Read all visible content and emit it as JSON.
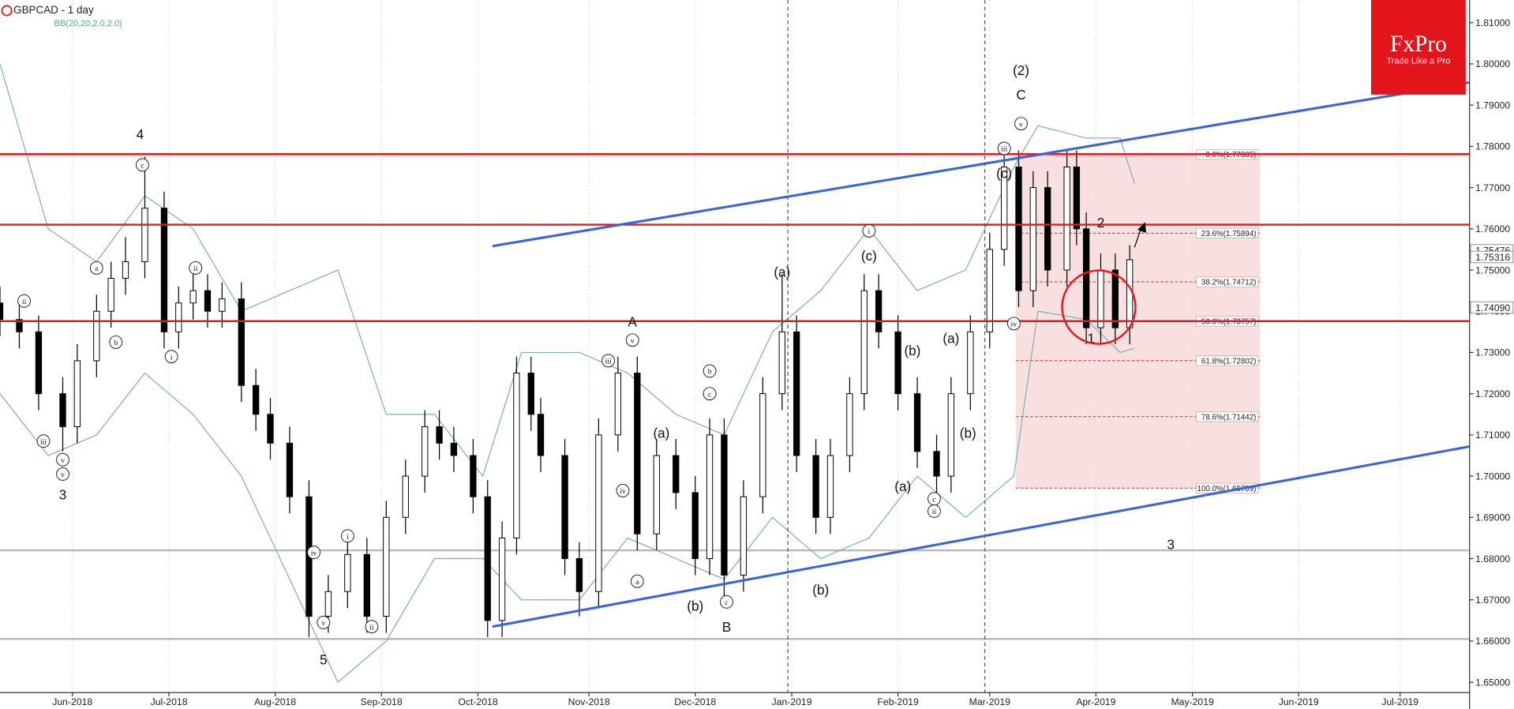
{
  "chart_data": {
    "type": "candlestick",
    "title": "GBPCAD - 1 day",
    "subtitle": "BB(20,20,2.0,2.0)",
    "brand": "FxPro",
    "tagline": "Trade Like a Pro",
    "xlim": [
      0,
      304.4
    ],
    "ylim": [
      1.6475,
      1.8155
    ],
    "xticks": [
      {
        "value": 15,
        "label": "Jun-2018"
      },
      {
        "value": 35,
        "label": "Jul-2018"
      },
      {
        "value": 57,
        "label": "Aug-2018"
      },
      {
        "value": 79,
        "label": "Sep-2018"
      },
      {
        "value": 99,
        "label": "Oct-2018"
      },
      {
        "value": 122,
        "label": "Nov-2018"
      },
      {
        "value": 144,
        "label": "Dec-2018"
      },
      {
        "value": 164,
        "label": "Jan-2019"
      },
      {
        "value": 186,
        "label": "Feb-2019"
      },
      {
        "value": 205,
        "label": "Mar-2019"
      },
      {
        "value": 227,
        "label": "Apr-2019"
      },
      {
        "value": 247,
        "label": "May-2019"
      },
      {
        "value": 269,
        "label": "Jun-2019"
      },
      {
        "value": 290,
        "label": "Jul-2019"
      }
    ],
    "yticks": [
      {
        "value": 1.81,
        "label": "1.81000"
      },
      {
        "value": 1.8,
        "label": "1.80000"
      },
      {
        "value": 1.79,
        "label": "1.79000"
      },
      {
        "value": 1.78,
        "label": "1.78000"
      },
      {
        "value": 1.77,
        "label": "1.77000"
      },
      {
        "value": 1.76,
        "label": "1.76000"
      },
      {
        "value": 1.75,
        "label": "1.75000"
      },
      {
        "value": 1.74,
        "label": "1.74000"
      },
      {
        "value": 1.73,
        "label": "1.73000"
      },
      {
        "value": 1.72,
        "label": "1.72000"
      },
      {
        "value": 1.71,
        "label": "1.71000"
      },
      {
        "value": 1.7,
        "label": "1.70000"
      },
      {
        "value": 1.69,
        "label": "1.69000"
      },
      {
        "value": 1.68,
        "label": "1.68000"
      },
      {
        "value": 1.67,
        "label": "1.67000"
      },
      {
        "value": 1.66,
        "label": "1.66000"
      },
      {
        "value": 1.65,
        "label": "1.65000"
      }
    ],
    "x": [
      0,
      4,
      8,
      13,
      16,
      20,
      23,
      26,
      30,
      34,
      37,
      40,
      43,
      46,
      50,
      53,
      56,
      60,
      64,
      68,
      72,
      76,
      80,
      84,
      88,
      91,
      94,
      98,
      101,
      104,
      107,
      110,
      112,
      117,
      120,
      124,
      128,
      132,
      136,
      140,
      144,
      147,
      150,
      154,
      158,
      162,
      165,
      169,
      172,
      176,
      179,
      182,
      186,
      190,
      194,
      197,
      201,
      205,
      208,
      211,
      214,
      217,
      221,
      223,
      225,
      228,
      231,
      234
    ],
    "open": [
      1.742,
      1.738,
      1.735,
      1.72,
      1.712,
      1.728,
      1.74,
      1.748,
      1.752,
      1.765,
      1.735,
      1.742,
      1.745,
      1.74,
      1.743,
      1.722,
      1.715,
      1.708,
      1.695,
      1.666,
      1.672,
      1.681,
      1.666,
      1.69,
      1.7,
      1.712,
      1.708,
      1.705,
      1.695,
      1.665,
      1.685,
      1.725,
      1.715,
      1.705,
      1.68,
      1.672,
      1.71,
      1.725,
      1.686,
      1.705,
      1.696,
      1.68,
      1.71,
      1.676,
      1.695,
      1.72,
      1.735,
      1.705,
      1.69,
      1.705,
      1.72,
      1.745,
      1.735,
      1.72,
      1.706,
      1.7,
      1.72,
      1.735,
      1.755,
      1.775,
      1.745,
      1.77,
      1.75,
      1.775,
      1.76,
      1.736,
      1.75,
      1.736
    ],
    "high": [
      1.746,
      1.742,
      1.739,
      1.724,
      1.732,
      1.744,
      1.752,
      1.758,
      1.7775,
      1.769,
      1.746,
      1.749,
      1.749,
      1.747,
      1.747,
      1.726,
      1.719,
      1.712,
      1.699,
      1.676,
      1.685,
      1.685,
      1.694,
      1.704,
      1.716,
      1.716,
      1.712,
      1.709,
      1.699,
      1.689,
      1.729,
      1.729,
      1.719,
      1.709,
      1.684,
      1.714,
      1.729,
      1.729,
      1.709,
      1.709,
      1.7,
      1.714,
      1.714,
      1.699,
      1.724,
      1.749,
      1.739,
      1.709,
      1.709,
      1.724,
      1.749,
      1.749,
      1.739,
      1.724,
      1.71,
      1.724,
      1.739,
      1.759,
      1.779,
      1.779,
      1.774,
      1.774,
      1.779,
      1.779,
      1.764,
      1.754,
      1.754,
      1.756
    ],
    "low": [
      1.734,
      1.731,
      1.716,
      1.706,
      1.708,
      1.724,
      1.736,
      1.744,
      1.748,
      1.731,
      1.731,
      1.738,
      1.736,
      1.736,
      1.718,
      1.711,
      1.704,
      1.691,
      1.661,
      1.662,
      1.668,
      1.662,
      1.662,
      1.686,
      1.696,
      1.704,
      1.701,
      1.691,
      1.661,
      1.661,
      1.681,
      1.711,
      1.701,
      1.676,
      1.666,
      1.668,
      1.706,
      1.682,
      1.682,
      1.692,
      1.676,
      1.676,
      1.67,
      1.672,
      1.691,
      1.716,
      1.701,
      1.686,
      1.686,
      1.701,
      1.716,
      1.731,
      1.716,
      1.702,
      1.696,
      1.696,
      1.716,
      1.731,
      1.751,
      1.741,
      1.741,
      1.746,
      1.746,
      1.756,
      1.732,
      1.732,
      1.732,
      1.732
    ],
    "close": [
      1.738,
      1.735,
      1.72,
      1.712,
      1.728,
      1.74,
      1.748,
      1.752,
      1.765,
      1.735,
      1.742,
      1.745,
      1.74,
      1.743,
      1.722,
      1.715,
      1.708,
      1.695,
      1.666,
      1.672,
      1.681,
      1.666,
      1.69,
      1.7,
      1.712,
      1.708,
      1.705,
      1.695,
      1.665,
      1.685,
      1.725,
      1.715,
      1.705,
      1.68,
      1.672,
      1.71,
      1.725,
      1.686,
      1.705,
      1.696,
      1.68,
      1.71,
      1.676,
      1.695,
      1.72,
      1.735,
      1.705,
      1.69,
      1.705,
      1.72,
      1.745,
      1.735,
      1.72,
      1.706,
      1.7,
      1.72,
      1.735,
      1.755,
      1.775,
      1.745,
      1.77,
      1.75,
      1.775,
      1.76,
      1.736,
      1.75,
      1.736,
      1.7525
    ],
    "bollinger": {
      "color": "#7fb0b0",
      "x": [
        0,
        10,
        20,
        30,
        40,
        50,
        60,
        70,
        80,
        90,
        100,
        108,
        120,
        130,
        140,
        150,
        160,
        170,
        180,
        190,
        200,
        210,
        215,
        225,
        232,
        235
      ],
      "upper": [
        1.8,
        1.76,
        1.752,
        1.768,
        1.76,
        1.74,
        1.745,
        1.75,
        1.715,
        1.715,
        1.7,
        1.73,
        1.73,
        1.725,
        1.715,
        1.71,
        1.735,
        1.745,
        1.76,
        1.745,
        1.75,
        1.775,
        1.785,
        1.782,
        1.782,
        1.771
      ],
      "lower": [
        1.72,
        1.705,
        1.71,
        1.725,
        1.715,
        1.7,
        1.675,
        1.65,
        1.66,
        1.68,
        1.68,
        1.67,
        1.67,
        1.685,
        1.68,
        1.675,
        1.69,
        1.68,
        1.685,
        1.7,
        1.69,
        1.7,
        1.74,
        1.738,
        1.73,
        1.731
      ]
    },
    "levels": {
      "color": "#e8191d",
      "values": [
        1.7781,
        1.761,
        1.7376
      ]
    },
    "grey_levels": {
      "color": "#b8b8b8",
      "values": [
        1.682,
        1.6605
      ]
    },
    "trendlines": {
      "color": "#3a63e0",
      "lines": [
        {
          "x": [
            102,
            304.4
          ],
          "y": [
            1.7558,
            1.7955
          ]
        },
        {
          "x": [
            102,
            304.4
          ],
          "y": [
            1.6635,
            1.7072
          ]
        }
      ]
    },
    "fib": {
      "x": [
        210.4,
        261
      ],
      "color": "#c0392b",
      "levels": [
        {
          "value": 1.77805,
          "label": "0.0%(1.77805)"
        },
        {
          "value": 1.75894,
          "label": "23.6%(1.75894)"
        },
        {
          "value": 1.74712,
          "label": "38.2%(1.74712)"
        },
        {
          "value": 1.73757,
          "label": "50.0%(1.73757)"
        },
        {
          "value": 1.72802,
          "label": "61.8%(1.72802)"
        },
        {
          "value": 1.71442,
          "label": "78.6%(1.71442)"
        },
        {
          "value": 1.69709,
          "label": "100.0%(1.69709)"
        }
      ]
    },
    "price_tags": [
      {
        "value": 1.75476,
        "label": "1.75476"
      },
      {
        "value": 1.75316,
        "label": "1.75316"
      },
      {
        "value": 1.7409,
        "label": "1.74090"
      }
    ],
    "annotations": [
      {
        "text": "4",
        "x": 29,
        "y": 1.783
      },
      {
        "text": "c",
        "x": 29.5,
        "y": 1.7755,
        "circled": true
      },
      {
        "text": "3",
        "x": 13,
        "y": 1.6955
      },
      {
        "text": "v",
        "x": 13,
        "y": 1.7005,
        "circled": true
      },
      {
        "text": "v",
        "x": 13,
        "y": 1.704,
        "circled": true
      },
      {
        "text": "iii",
        "x": 9,
        "y": 1.7085,
        "circled": true
      },
      {
        "text": "ii",
        "x": 5,
        "y": 1.7425,
        "circled": true
      },
      {
        "text": "a",
        "x": 20,
        "y": 1.7505,
        "circled": true
      },
      {
        "text": "b",
        "x": 24,
        "y": 1.7325,
        "circled": true
      },
      {
        "text": "ii",
        "x": 40.5,
        "y": 1.7505,
        "circled": true
      },
      {
        "text": "i",
        "x": 35.5,
        "y": 1.729,
        "circled": true
      },
      {
        "text": "5",
        "x": 67,
        "y": 1.6555
      },
      {
        "text": "iv",
        "x": 65,
        "y": 1.6815,
        "circled": true
      },
      {
        "text": "v",
        "x": 67,
        "y": 1.6645,
        "circled": true
      },
      {
        "text": "i",
        "x": 72,
        "y": 1.6855,
        "circled": true
      },
      {
        "text": "ii",
        "x": 77,
        "y": 1.6635,
        "circled": true
      },
      {
        "text": "A",
        "x": 131,
        "y": 1.7375
      },
      {
        "text": "v",
        "x": 131,
        "y": 1.733,
        "circled": true
      },
      {
        "text": "iii",
        "x": 126,
        "y": 1.728,
        "circled": true
      },
      {
        "text": "iv",
        "x": 129,
        "y": 1.6965,
        "circled": true
      },
      {
        "text": "(a)",
        "x": 137,
        "y": 1.7105
      },
      {
        "text": "a",
        "x": 132,
        "y": 1.6745,
        "circled": true
      },
      {
        "text": "b",
        "x": 147,
        "y": 1.7255,
        "circled": true
      },
      {
        "text": "c",
        "x": 147,
        "y": 1.72,
        "circled": true
      },
      {
        "text": "(b)",
        "x": 144,
        "y": 1.6685
      },
      {
        "text": "B",
        "x": 150.5,
        "y": 1.6635
      },
      {
        "text": "c",
        "x": 150.5,
        "y": 1.6695,
        "circled": true
      },
      {
        "text": "(a)",
        "x": 162,
        "y": 1.7495
      },
      {
        "text": "(b)",
        "x": 170,
        "y": 1.6725
      },
      {
        "text": "i",
        "x": 180,
        "y": 1.7595,
        "circled": true
      },
      {
        "text": "(c)",
        "x": 180,
        "y": 1.7535
      },
      {
        "text": "(b)",
        "x": 189,
        "y": 1.7305
      },
      {
        "text": "(a)",
        "x": 187,
        "y": 1.6975
      },
      {
        "text": "(a)",
        "x": 197,
        "y": 1.7335
      },
      {
        "text": "c",
        "x": 193.5,
        "y": 1.6945,
        "circled": true
      },
      {
        "text": "ii",
        "x": 193.5,
        "y": 1.6915,
        "circled": true
      },
      {
        "text": "(b)",
        "x": 200.5,
        "y": 1.7105
      },
      {
        "text": "(2)",
        "x": 211.5,
        "y": 1.7985
      },
      {
        "text": "C",
        "x": 211.5,
        "y": 1.7925
      },
      {
        "text": "v",
        "x": 211.5,
        "y": 1.7855,
        "circled": true
      },
      {
        "text": "iii",
        "x": 208,
        "y": 1.7795,
        "circled": true
      },
      {
        "text": "(c)",
        "x": 208,
        "y": 1.7735
      },
      {
        "text": "iv",
        "x": 210,
        "y": 1.737,
        "circled": true
      },
      {
        "text": "2",
        "x": 228,
        "y": 1.7615
      },
      {
        "text": "1",
        "x": 226,
        "y": 1.7335
      },
      {
        "text": "3",
        "x": 242.5,
        "y": 1.6835
      }
    ]
  }
}
